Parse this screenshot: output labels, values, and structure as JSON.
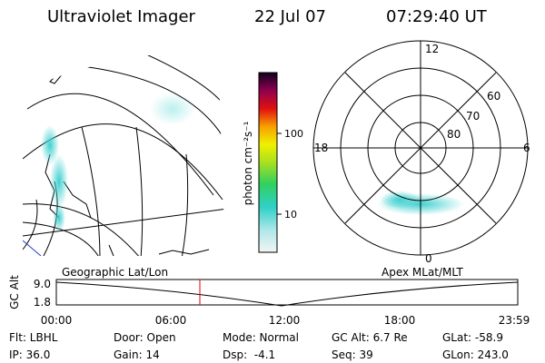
{
  "header": {
    "title": "Ultraviolet Imager",
    "date": "22 Jul 07",
    "time": "07:29:40 UT"
  },
  "colorbar": {
    "label": "photon cm⁻²s⁻¹",
    "ticks": [
      "100",
      "10"
    ]
  },
  "polar": {
    "mlt_labels": [
      "12",
      "18",
      "6",
      "0"
    ],
    "mlat_labels": [
      "80",
      "70",
      "60"
    ]
  },
  "orbit": {
    "left_title": "Geographic Lat/Lon",
    "right_title": "Apex MLat/MLT",
    "axis_label": "GC Alt",
    "y_ticks": [
      "9.0",
      "1.8"
    ],
    "x_ticks": [
      "00:00",
      "06:00",
      "12:00",
      "18:00",
      "23:59"
    ]
  },
  "footer": {
    "rows": [
      [
        "Flt: LBHL",
        "Door: Open",
        "Mode: Normal",
        "GC Alt: 6.7 Re",
        "GLat: -58.9"
      ],
      [
        "IP: 36.0",
        "Gain: 14",
        "Dsp:  -4.1",
        "Seq: 39",
        "GLon: 243.0"
      ]
    ]
  }
}
